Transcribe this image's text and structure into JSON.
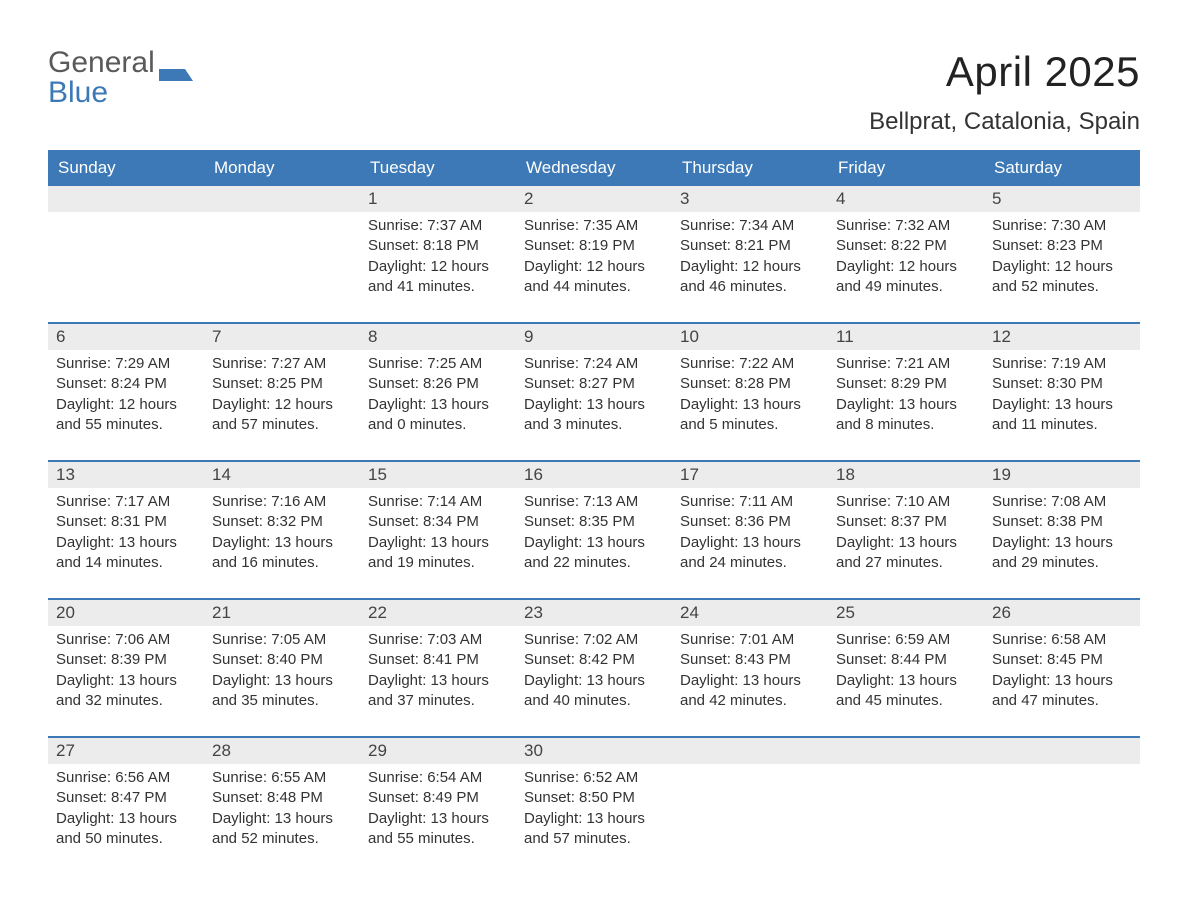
{
  "brand": {
    "line1": "General",
    "line2": "Blue",
    "accent": "#3c79b6",
    "gray": "#5a5a5a"
  },
  "title": "April 2025",
  "location": "Bellprat, Catalonia, Spain",
  "colors": {
    "header_bg": "#3c79b6",
    "header_text": "#ffffff",
    "daynum_bg": "#ececec",
    "body_text": "#333333",
    "page_bg": "#ffffff",
    "week_border": "#3c79b6"
  },
  "typography": {
    "month_title_size": 42,
    "location_size": 24,
    "weekday_size": 17,
    "daynum_size": 17,
    "body_size": 15
  },
  "weekdays": [
    "Sunday",
    "Monday",
    "Tuesday",
    "Wednesday",
    "Thursday",
    "Friday",
    "Saturday"
  ],
  "labels": {
    "sunrise": "Sunrise:",
    "sunset": "Sunset:",
    "daylight": "Daylight:"
  },
  "weeks": [
    [
      null,
      null,
      {
        "n": "1",
        "sunrise": "7:37 AM",
        "sunset": "8:18 PM",
        "daylight": "12 hours and 41 minutes."
      },
      {
        "n": "2",
        "sunrise": "7:35 AM",
        "sunset": "8:19 PM",
        "daylight": "12 hours and 44 minutes."
      },
      {
        "n": "3",
        "sunrise": "7:34 AM",
        "sunset": "8:21 PM",
        "daylight": "12 hours and 46 minutes."
      },
      {
        "n": "4",
        "sunrise": "7:32 AM",
        "sunset": "8:22 PM",
        "daylight": "12 hours and 49 minutes."
      },
      {
        "n": "5",
        "sunrise": "7:30 AM",
        "sunset": "8:23 PM",
        "daylight": "12 hours and 52 minutes."
      }
    ],
    [
      {
        "n": "6",
        "sunrise": "7:29 AM",
        "sunset": "8:24 PM",
        "daylight": "12 hours and 55 minutes."
      },
      {
        "n": "7",
        "sunrise": "7:27 AM",
        "sunset": "8:25 PM",
        "daylight": "12 hours and 57 minutes."
      },
      {
        "n": "8",
        "sunrise": "7:25 AM",
        "sunset": "8:26 PM",
        "daylight": "13 hours and 0 minutes."
      },
      {
        "n": "9",
        "sunrise": "7:24 AM",
        "sunset": "8:27 PM",
        "daylight": "13 hours and 3 minutes."
      },
      {
        "n": "10",
        "sunrise": "7:22 AM",
        "sunset": "8:28 PM",
        "daylight": "13 hours and 5 minutes."
      },
      {
        "n": "11",
        "sunrise": "7:21 AM",
        "sunset": "8:29 PM",
        "daylight": "13 hours and 8 minutes."
      },
      {
        "n": "12",
        "sunrise": "7:19 AM",
        "sunset": "8:30 PM",
        "daylight": "13 hours and 11 minutes."
      }
    ],
    [
      {
        "n": "13",
        "sunrise": "7:17 AM",
        "sunset": "8:31 PM",
        "daylight": "13 hours and 14 minutes."
      },
      {
        "n": "14",
        "sunrise": "7:16 AM",
        "sunset": "8:32 PM",
        "daylight": "13 hours and 16 minutes."
      },
      {
        "n": "15",
        "sunrise": "7:14 AM",
        "sunset": "8:34 PM",
        "daylight": "13 hours and 19 minutes."
      },
      {
        "n": "16",
        "sunrise": "7:13 AM",
        "sunset": "8:35 PM",
        "daylight": "13 hours and 22 minutes."
      },
      {
        "n": "17",
        "sunrise": "7:11 AM",
        "sunset": "8:36 PM",
        "daylight": "13 hours and 24 minutes."
      },
      {
        "n": "18",
        "sunrise": "7:10 AM",
        "sunset": "8:37 PM",
        "daylight": "13 hours and 27 minutes."
      },
      {
        "n": "19",
        "sunrise": "7:08 AM",
        "sunset": "8:38 PM",
        "daylight": "13 hours and 29 minutes."
      }
    ],
    [
      {
        "n": "20",
        "sunrise": "7:06 AM",
        "sunset": "8:39 PM",
        "daylight": "13 hours and 32 minutes."
      },
      {
        "n": "21",
        "sunrise": "7:05 AM",
        "sunset": "8:40 PM",
        "daylight": "13 hours and 35 minutes."
      },
      {
        "n": "22",
        "sunrise": "7:03 AM",
        "sunset": "8:41 PM",
        "daylight": "13 hours and 37 minutes."
      },
      {
        "n": "23",
        "sunrise": "7:02 AM",
        "sunset": "8:42 PM",
        "daylight": "13 hours and 40 minutes."
      },
      {
        "n": "24",
        "sunrise": "7:01 AM",
        "sunset": "8:43 PM",
        "daylight": "13 hours and 42 minutes."
      },
      {
        "n": "25",
        "sunrise": "6:59 AM",
        "sunset": "8:44 PM",
        "daylight": "13 hours and 45 minutes."
      },
      {
        "n": "26",
        "sunrise": "6:58 AM",
        "sunset": "8:45 PM",
        "daylight": "13 hours and 47 minutes."
      }
    ],
    [
      {
        "n": "27",
        "sunrise": "6:56 AM",
        "sunset": "8:47 PM",
        "daylight": "13 hours and 50 minutes."
      },
      {
        "n": "28",
        "sunrise": "6:55 AM",
        "sunset": "8:48 PM",
        "daylight": "13 hours and 52 minutes."
      },
      {
        "n": "29",
        "sunrise": "6:54 AM",
        "sunset": "8:49 PM",
        "daylight": "13 hours and 55 minutes."
      },
      {
        "n": "30",
        "sunrise": "6:52 AM",
        "sunset": "8:50 PM",
        "daylight": "13 hours and 57 minutes."
      },
      null,
      null,
      null
    ]
  ]
}
